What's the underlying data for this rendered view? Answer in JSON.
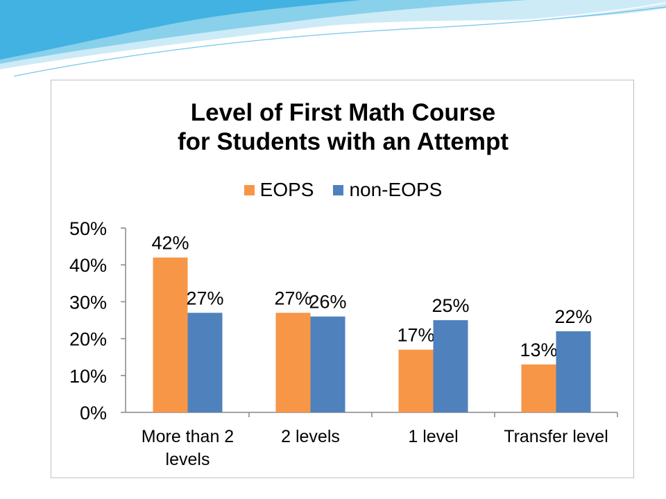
{
  "colors": {
    "eops": "#f79646",
    "non_eops": "#4f81bd",
    "axis": "#868686",
    "deco_light": "#cdeaf7",
    "deco_mid": "#7ccbe9",
    "deco_dark": "#3aaee0"
  },
  "chart_data": {
    "type": "bar",
    "title_lines": [
      "Level of First Math Course",
      "for Students with an Attempt"
    ],
    "categories": [
      [
        "More than 2",
        "levels"
      ],
      [
        "2 levels"
      ],
      [
        "1 level"
      ],
      [
        "Transfer level"
      ]
    ],
    "series": [
      {
        "name": "EOPS",
        "values": [
          42,
          27,
          17,
          13
        ],
        "labels": [
          "42%",
          "27%",
          "17%",
          "13%"
        ]
      },
      {
        "name": "non-EOPS",
        "values": [
          27,
          26,
          25,
          22
        ],
        "labels": [
          "27%",
          "26%",
          "25%",
          "22%"
        ]
      }
    ],
    "y_ticks": [
      "0%",
      "10%",
      "20%",
      "30%",
      "40%",
      "50%"
    ],
    "ylim": [
      0,
      50
    ],
    "grid": false,
    "legend_position": "top"
  }
}
